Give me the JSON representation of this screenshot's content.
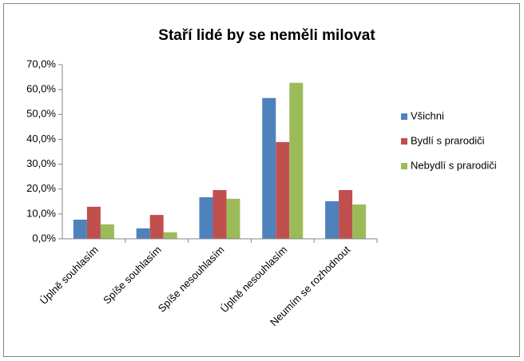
{
  "chart_data": {
    "type": "bar",
    "title": "Staří lidé by se neměli milovat",
    "categories": [
      "Úplně souhlasím",
      "Spíše souhlasím",
      "Spíše nesouhlasím",
      "Úplně nesouhlasím",
      "Neumím se rozhodnout"
    ],
    "series": [
      {
        "name": "Všichni",
        "color": "#4f81bd",
        "values": [
          7.7,
          4.2,
          16.7,
          56.6,
          15.1
        ]
      },
      {
        "name": "Bydlí s prarodiči",
        "color": "#c0504d",
        "values": [
          12.9,
          9.6,
          19.6,
          38.9,
          19.6
        ]
      },
      {
        "name": "Nebydlí s prarodiči",
        "color": "#9bbb59",
        "values": [
          5.8,
          2.6,
          16.1,
          62.7,
          13.8
        ]
      }
    ],
    "ylim": [
      0,
      70
    ],
    "yticks": [
      {
        "value": 0,
        "label": "0,0%"
      },
      {
        "value": 10,
        "label": "10,0%"
      },
      {
        "value": 20,
        "label": "20,0%"
      },
      {
        "value": 30,
        "label": "30,0%"
      },
      {
        "value": 40,
        "label": "40,0%"
      },
      {
        "value": 50,
        "label": "50,0%"
      },
      {
        "value": 60,
        "label": "60,0%"
      },
      {
        "value": 70,
        "label": "70,0%"
      }
    ],
    "legend": "right",
    "grid": false
  }
}
